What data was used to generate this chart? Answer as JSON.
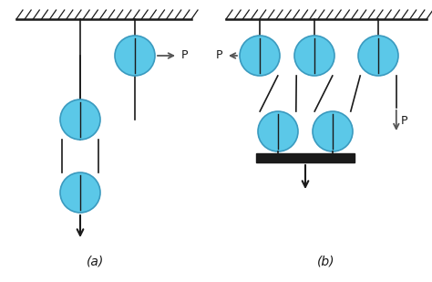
{
  "bg_color": "#ffffff",
  "pulley_color": "#5bc8e8",
  "pulley_edge": "#3a9abf",
  "line_color": "#1a1a1a",
  "arrow_color": "#555555",
  "label_a": "(a)",
  "label_b": "(b)",
  "P_label": "P",
  "figsize": [
    4.74,
    3.09
  ],
  "dpi": 100
}
